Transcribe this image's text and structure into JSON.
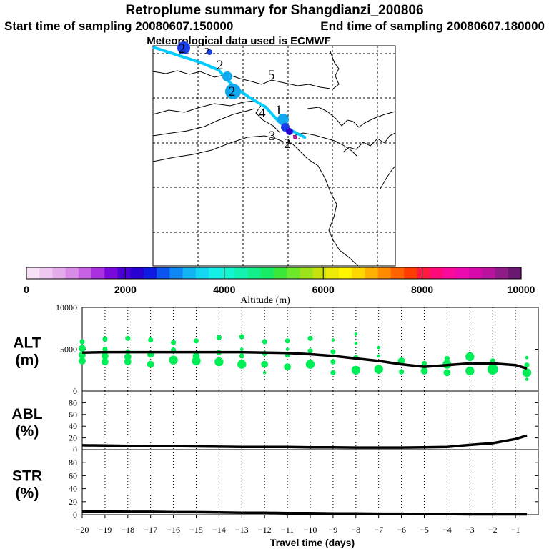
{
  "header": {
    "title": "Retroplume summary for Shangdianzi_200806",
    "start_label": "Start time of sampling 20080607.150000",
    "end_label": "End time of sampling 20080607.180000",
    "met_label": "Meteorological data used is ECMWF"
  },
  "map": {
    "region_numbers": [
      "5",
      "4",
      "3",
      "2",
      "1"
    ],
    "trajectory_color": "#00ccff"
  },
  "colorbar": {
    "title": "Altitude (m)",
    "tick_labels": [
      "0",
      "2000",
      "4000",
      "6000",
      "8000",
      "10000"
    ],
    "colors": [
      "#f7e1f7",
      "#efc8f1",
      "#e5acec",
      "#d98be8",
      "#c762e4",
      "#a92fe0",
      "#7a08da",
      "#4b00d4",
      "#2800cf",
      "#0f1ae0",
      "#0a55ee",
      "#0d87f3",
      "#12b4f3",
      "#14d6f0",
      "#14efe8",
      "#14f5d2",
      "#14f2b0",
      "#14ef8c",
      "#18ec64",
      "#3ae83a",
      "#6ee82a",
      "#9de31c",
      "#c7e010",
      "#ecea06",
      "#fff500",
      "#ffd600",
      "#ffb000",
      "#ff8a00",
      "#ff6200",
      "#ff3c00",
      "#ff1a40",
      "#ff0a78",
      "#f70a9c",
      "#ea0ab0",
      "#d60aac",
      "#b8129e",
      "#901a88",
      "#6a1870"
    ]
  },
  "chart_data": [
    {
      "type": "scatter",
      "panel": "ALT",
      "label_line1": "ALT",
      "label_line2": "(m)",
      "ylim": [
        0,
        10000
      ],
      "yticks": [
        "10000",
        "5000",
        "0"
      ],
      "line_color": "#000000",
      "point_color": "#00ee55",
      "line": {
        "x": [
          -20,
          -19,
          -18,
          -17,
          -16,
          -15,
          -14,
          -13,
          -12,
          -11,
          -10,
          -9,
          -8,
          -7,
          -6,
          -5,
          -4,
          -3,
          -2,
          -1,
          -0.5
        ],
        "y": [
          4600,
          4650,
          4650,
          4650,
          4650,
          4650,
          4650,
          4650,
          4600,
          4550,
          4400,
          4200,
          3900,
          3600,
          3200,
          2900,
          3100,
          3300,
          3300,
          3100,
          2700
        ]
      },
      "points": [
        {
          "x": -20,
          "y": 5900,
          "s": 2
        },
        {
          "x": -20,
          "y": 5100,
          "s": 3
        },
        {
          "x": -20,
          "y": 4300,
          "s": 3
        },
        {
          "x": -20,
          "y": 3600,
          "s": 3
        },
        {
          "x": -19,
          "y": 6200,
          "s": 2
        },
        {
          "x": -19,
          "y": 5000,
          "s": 2
        },
        {
          "x": -19,
          "y": 4200,
          "s": 3
        },
        {
          "x": -19,
          "y": 3500,
          "s": 3
        },
        {
          "x": -18,
          "y": 6300,
          "s": 2
        },
        {
          "x": -18,
          "y": 4700,
          "s": 2
        },
        {
          "x": -18,
          "y": 4100,
          "s": 3
        },
        {
          "x": -18,
          "y": 3500,
          "s": 3
        },
        {
          "x": -17,
          "y": 6100,
          "s": 2
        },
        {
          "x": -17,
          "y": 4400,
          "s": 3
        },
        {
          "x": -17,
          "y": 3200,
          "s": 3
        },
        {
          "x": -16,
          "y": 5800,
          "s": 2
        },
        {
          "x": -16,
          "y": 4900,
          "s": 2
        },
        {
          "x": -16,
          "y": 3700,
          "s": 4
        },
        {
          "x": -15,
          "y": 6000,
          "s": 2
        },
        {
          "x": -15,
          "y": 4200,
          "s": 3
        },
        {
          "x": -15,
          "y": 3600,
          "s": 4
        },
        {
          "x": -14,
          "y": 6400,
          "s": 2
        },
        {
          "x": -14,
          "y": 4600,
          "s": 2
        },
        {
          "x": -14,
          "y": 3500,
          "s": 4
        },
        {
          "x": -13,
          "y": 6500,
          "s": 2
        },
        {
          "x": -13,
          "y": 5000,
          "s": 1
        },
        {
          "x": -13,
          "y": 4200,
          "s": 2
        },
        {
          "x": -13,
          "y": 3200,
          "s": 4
        },
        {
          "x": -12,
          "y": 5900,
          "s": 2
        },
        {
          "x": -12,
          "y": 4500,
          "s": 2
        },
        {
          "x": -12,
          "y": 3200,
          "s": 3
        },
        {
          "x": -12,
          "y": 2200,
          "s": 1
        },
        {
          "x": -11,
          "y": 6000,
          "s": 2
        },
        {
          "x": -11,
          "y": 5000,
          "s": 1
        },
        {
          "x": -11,
          "y": 4300,
          "s": 2
        },
        {
          "x": -11,
          "y": 2900,
          "s": 3
        },
        {
          "x": -10,
          "y": 6300,
          "s": 2
        },
        {
          "x": -10,
          "y": 4800,
          "s": 2
        },
        {
          "x": -10,
          "y": 3200,
          "s": 4
        },
        {
          "x": -9,
          "y": 6100,
          "s": 1
        },
        {
          "x": -9,
          "y": 4700,
          "s": 2
        },
        {
          "x": -9,
          "y": 3500,
          "s": 2
        },
        {
          "x": -9,
          "y": 2200,
          "s": 2
        },
        {
          "x": -8,
          "y": 6800,
          "s": 1
        },
        {
          "x": -8,
          "y": 5700,
          "s": 1
        },
        {
          "x": -8,
          "y": 4000,
          "s": 2
        },
        {
          "x": -8,
          "y": 2500,
          "s": 4
        },
        {
          "x": -7,
          "y": 5200,
          "s": 1
        },
        {
          "x": -7,
          "y": 4200,
          "s": 1
        },
        {
          "x": -7,
          "y": 2600,
          "s": 4
        },
        {
          "x": -6,
          "y": 3600,
          "s": 3
        },
        {
          "x": -6,
          "y": 2300,
          "s": 2
        },
        {
          "x": -5,
          "y": 3300,
          "s": 2
        },
        {
          "x": -5,
          "y": 2400,
          "s": 3
        },
        {
          "x": -4,
          "y": 3900,
          "s": 2
        },
        {
          "x": -4,
          "y": 3200,
          "s": 4
        },
        {
          "x": -4,
          "y": 2200,
          "s": 3
        },
        {
          "x": -3,
          "y": 4100,
          "s": 4
        },
        {
          "x": -3,
          "y": 2400,
          "s": 4
        },
        {
          "x": -2,
          "y": 3600,
          "s": 2
        },
        {
          "x": -2,
          "y": 2600,
          "s": 5
        },
        {
          "x": -0.5,
          "y": 4000,
          "s": 1
        },
        {
          "x": -0.5,
          "y": 3100,
          "s": 2
        },
        {
          "x": -0.5,
          "y": 2200,
          "s": 4
        },
        {
          "x": -0.5,
          "y": 1400,
          "s": 1
        }
      ]
    },
    {
      "type": "line",
      "panel": "ABL",
      "label_line1": "ABL",
      "label_line2": "(%)",
      "ylim": [
        0,
        100
      ],
      "yticks": [
        "80",
        "60",
        "40",
        "20",
        "0"
      ],
      "line_color": "#000000",
      "x": [
        -20,
        -19,
        -18,
        -17,
        -16,
        -15,
        -14,
        -13,
        -12,
        -11,
        -10,
        -9,
        -8,
        -7,
        -6,
        -5,
        -4,
        -3,
        -2,
        -1,
        -0.5
      ],
      "y": [
        7.5,
        7,
        6.5,
        6,
        6,
        5.5,
        5,
        4.5,
        4.5,
        4.5,
        4,
        4,
        3.5,
        3.5,
        3.5,
        4,
        4.5,
        8,
        11,
        18,
        24
      ]
    },
    {
      "type": "line",
      "panel": "STR",
      "label_line1": "STR",
      "label_line2": "(%)",
      "ylim": [
        0,
        100
      ],
      "yticks": [
        "80",
        "60",
        "40",
        "20",
        "0"
      ],
      "line_color": "#000000",
      "x": [
        -20,
        -19,
        -18,
        -17,
        -16,
        -15,
        -14,
        -13,
        -12,
        -11,
        -10,
        -9,
        -8,
        -7,
        -6,
        -5,
        -4,
        -3,
        -2,
        -1,
        -0.5
      ],
      "y": [
        5,
        5,
        4.5,
        4.5,
        4,
        4,
        3.5,
        3,
        3,
        2.5,
        2.5,
        2,
        2,
        1.5,
        1.5,
        1,
        1,
        0.5,
        0.5,
        0.5,
        0.5
      ]
    }
  ],
  "xaxis": {
    "label": "Travel time (days)",
    "xlim": [
      -20,
      0
    ],
    "ticks": [
      -20,
      -19,
      -18,
      -17,
      -16,
      -15,
      -14,
      -13,
      -12,
      -11,
      -10,
      -9,
      -8,
      -7,
      -6,
      -5,
      -4,
      -3,
      -2,
      -1
    ],
    "tick_labels": [
      "−20",
      "−19",
      "−18",
      "−17",
      "−16",
      "−15",
      "−14",
      "−13",
      "−12",
      "−11",
      "−10",
      "−9",
      "−8",
      "−7",
      "−6",
      "−5",
      "−4",
      "−3",
      "−2",
      "−1"
    ]
  }
}
